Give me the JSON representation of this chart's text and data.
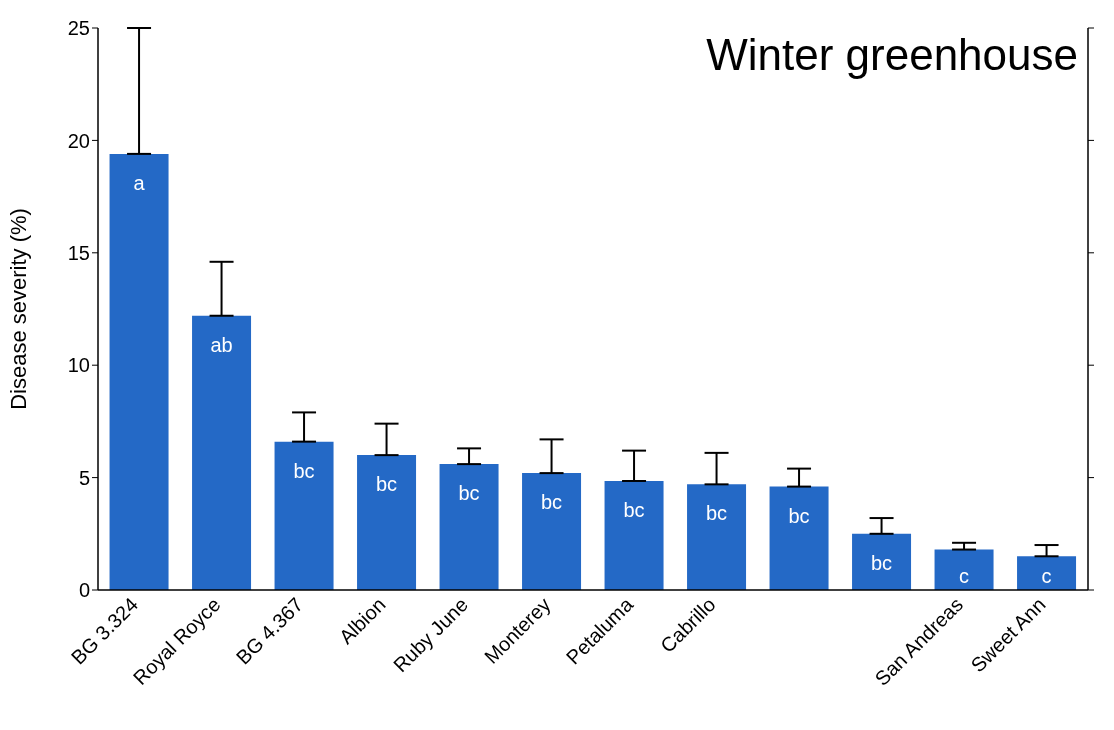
{
  "chart_data": {
    "type": "bar",
    "title": "Winter greenhouse",
    "ylabel": "Disease severity (%)",
    "categories": [
      "BG 3.324",
      "Royal Royce",
      "BG 4.367",
      "Albion",
      "Ruby June",
      "Monterey",
      "Petaluma",
      "Cabrillo",
      null,
      null,
      "San Andreas",
      "Sweet Ann"
    ],
    "values": [
      19.4,
      12.2,
      6.6,
      6.0,
      5.6,
      5.2,
      4.85,
      4.7,
      4.6,
      2.5,
      1.8,
      1.5
    ],
    "errors": [
      [
        19.4,
        25.0
      ],
      [
        12.2,
        14.6
      ],
      [
        6.6,
        7.9
      ],
      [
        6.0,
        7.4
      ],
      [
        5.6,
        6.3
      ],
      [
        5.2,
        6.7
      ],
      [
        4.85,
        6.2
      ],
      [
        4.7,
        6.1
      ],
      [
        4.6,
        5.4
      ],
      [
        2.5,
        3.2
      ],
      [
        1.8,
        2.1
      ],
      [
        1.5,
        2.0
      ]
    ],
    "value_labels": [
      "a",
      "ab",
      "bc",
      "bc",
      "bc",
      "bc",
      "bc",
      "bc",
      "bc",
      "bc",
      "c",
      "c"
    ],
    "color": "#2469c6",
    "ylim": [
      0,
      25
    ],
    "yticks": [
      0,
      5,
      10,
      15,
      20,
      25
    ],
    "grid": false
  }
}
